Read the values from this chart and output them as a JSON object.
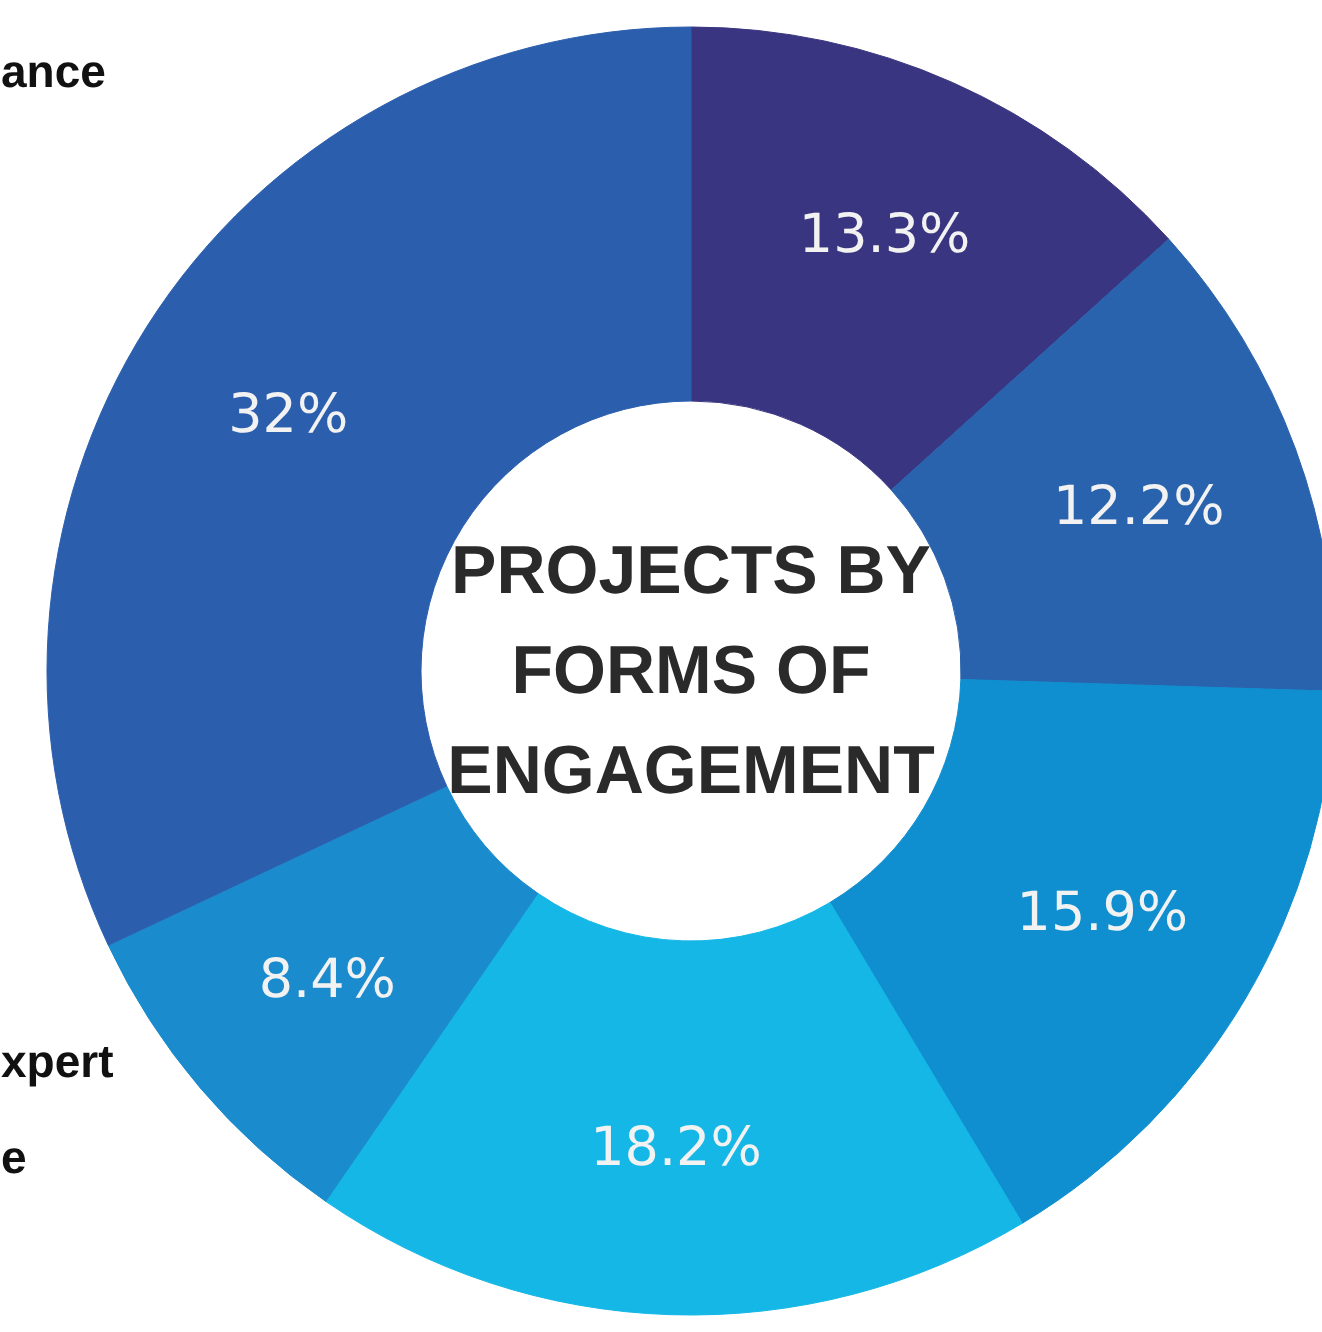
{
  "chart_data": {
    "type": "donut",
    "title": "PROJECTS BY FORMS OF ENGAGEMENT",
    "categories": [
      null,
      null,
      null,
      null,
      null,
      null
    ],
    "values": [
      13.3,
      12.2,
      15.9,
      18.2,
      8.4,
      32
    ],
    "colors": [
      "#3a3580",
      "#2a63ad",
      "#0f8fd0",
      "#14b7e6",
      "#1a8bcd",
      "#2b5fae"
    ],
    "value_labels": [
      "13.3%",
      "12.2%",
      "15.9%",
      "18.2%",
      "8.4%",
      "32%"
    ],
    "annotations": [
      "ance",
      "xpert",
      "e"
    ]
  }
}
